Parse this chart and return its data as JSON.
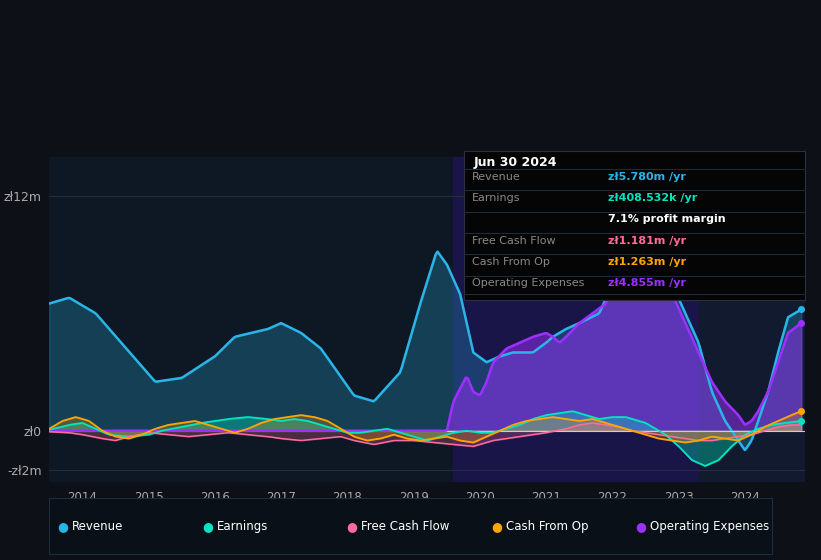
{
  "bg_color": "#0d1117",
  "chart_bg": "#0e1824",
  "grid_color": "#1e2d3d",
  "highlight_start": 2023.3,
  "highlight_color": "#1a1a50",
  "highlight2_start": 2019.6,
  "highlight2_color": "#1a1a44",
  "ylabel_12m": "zł12m",
  "ylabel_zero": "zł0",
  "ylabel_neg": "-zł2m",
  "xlim": [
    2013.5,
    2024.9
  ],
  "ylim": [
    -2600000,
    14000000
  ],
  "colors": {
    "revenue": "#29b5e8",
    "earnings": "#00e5c0",
    "free_cash_flow": "#ff6b9d",
    "cash_from_op": "#ffa500",
    "operating_expenses": "#9b30ff"
  },
  "legend_items": [
    {
      "label": "Revenue",
      "color": "#29b5e8"
    },
    {
      "label": "Earnings",
      "color": "#00e5c0"
    },
    {
      "label": "Free Cash Flow",
      "color": "#ff6b9d"
    },
    {
      "label": "Cash From Op",
      "color": "#ffa500"
    },
    {
      "label": "Operating Expenses",
      "color": "#9b30ff"
    }
  ],
  "tooltip": {
    "date": "Jun 30 2024",
    "rows": [
      {
        "label": "Revenue",
        "value": "zł5.780m /yr",
        "value_color": "#29b5e8"
      },
      {
        "label": "Earnings",
        "value": "zł408.532k /yr",
        "value_color": "#00e5c0"
      },
      {
        "label": "",
        "value": "7.1% profit margin",
        "value_color": "#ffffff"
      },
      {
        "label": "Free Cash Flow",
        "value": "zł1.181m /yr",
        "value_color": "#ff6b9d"
      },
      {
        "label": "Cash From Op",
        "value": "zł1.263m /yr",
        "value_color": "#ffa500"
      },
      {
        "label": "Operating Expenses",
        "value": "zł4.855m /yr",
        "value_color": "#9b30ff"
      }
    ]
  }
}
